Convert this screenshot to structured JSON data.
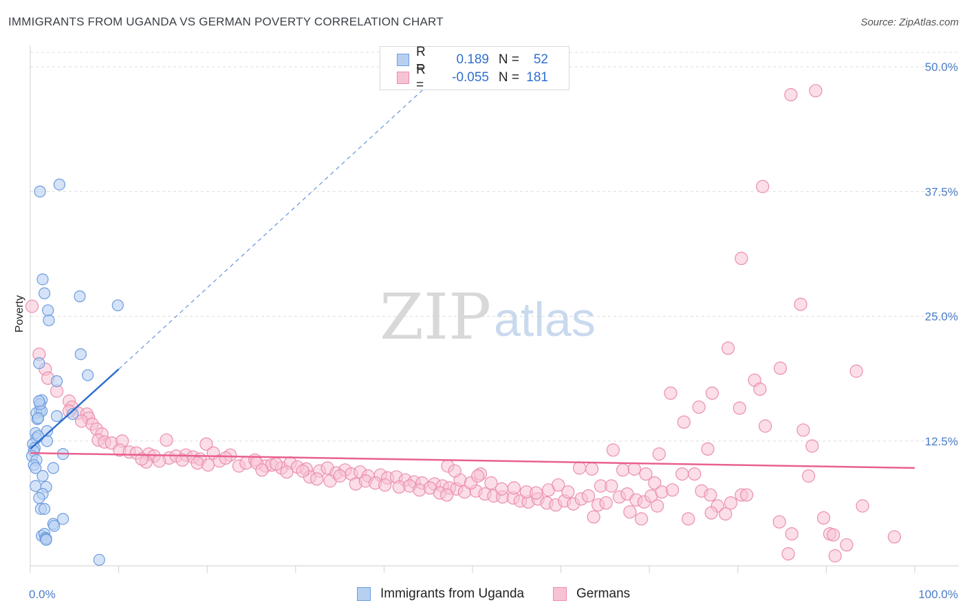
{
  "header": {
    "title": "IMMIGRANTS FROM UGANDA VS GERMAN POVERTY CORRELATION CHART",
    "source": "Source: ZipAtlas.com"
  },
  "watermark": {
    "zip": "ZIP",
    "atlas": "atlas"
  },
  "legend": {
    "rows": [
      {
        "r_label": "R =",
        "r_value": "0.189",
        "n_label": "N =",
        "n_value": "52"
      },
      {
        "r_label": "R =",
        "r_value": "-0.055",
        "n_label": "N =",
        "n_value": "181"
      }
    ]
  },
  "colors": {
    "uganda_fill": "#b7d0f2",
    "uganda_stroke": "#6d9be0",
    "uganda_line": "#2f6fcf",
    "germans_fill": "#f7c3d3",
    "germans_stroke": "#eb8dae",
    "germans_line": "#e8608e",
    "grid": "#dcdcdc",
    "tick_text": "#4a7cc7"
  },
  "chart_data": {
    "type": "scatter",
    "title": "IMMIGRANTS FROM UGANDA VS GERMAN POVERTY CORRELATION CHART",
    "xlabel": "",
    "ylabel": "Poverty",
    "xlim": [
      0,
      100
    ],
    "ylim": [
      0,
      52
    ],
    "x_tick_labels": [
      "0.0%",
      "100.0%"
    ],
    "y_ticks": [
      12.5,
      25.0,
      37.5,
      50.0
    ],
    "y_tick_labels": [
      "12.5%",
      "25.0%",
      "37.5%",
      "50.0%"
    ],
    "grid": true,
    "legend_position": "bottom",
    "series": [
      {
        "name": "Immigrants from Uganda",
        "r": 0.189,
        "n": 52,
        "trend": {
          "x": [
            0,
            10
          ],
          "y": [
            11.7,
            19.7
          ],
          "extended_to": [
            45,
            48.2
          ]
        },
        "points": [
          [
            1.1,
            37.5
          ],
          [
            3.3,
            38.2
          ],
          [
            1.4,
            28.7
          ],
          [
            1.6,
            27.3
          ],
          [
            5.6,
            27.0
          ],
          [
            2.1,
            24.6
          ],
          [
            9.9,
            26.1
          ],
          [
            1.0,
            20.3
          ],
          [
            5.7,
            21.2
          ],
          [
            6.5,
            19.1
          ],
          [
            3.0,
            18.5
          ],
          [
            1.3,
            16.6
          ],
          [
            1.1,
            15.5
          ],
          [
            0.7,
            15.3
          ],
          [
            1.3,
            15.5
          ],
          [
            0.8,
            14.7
          ],
          [
            3.0,
            15.0
          ],
          [
            0.9,
            14.8
          ],
          [
            1.1,
            16.2
          ],
          [
            1.0,
            16.5
          ],
          [
            1.9,
            13.5
          ],
          [
            0.6,
            13.3
          ],
          [
            0.7,
            12.8
          ],
          [
            1.9,
            12.5
          ],
          [
            0.3,
            12.2
          ],
          [
            0.5,
            11.8
          ],
          [
            0.4,
            11.5
          ],
          [
            0.2,
            11.0
          ],
          [
            3.7,
            11.2
          ],
          [
            0.7,
            10.6
          ],
          [
            0.4,
            10.1
          ],
          [
            0.6,
            9.8
          ],
          [
            2.6,
            9.8
          ],
          [
            1.4,
            9.0
          ],
          [
            0.6,
            8.0
          ],
          [
            1.8,
            7.9
          ],
          [
            1.4,
            7.2
          ],
          [
            1.0,
            6.8
          ],
          [
            1.2,
            5.7
          ],
          [
            1.6,
            5.7
          ],
          [
            3.7,
            4.7
          ],
          [
            2.6,
            4.2
          ],
          [
            2.7,
            4.0
          ],
          [
            1.3,
            3.0
          ],
          [
            1.6,
            3.2
          ],
          [
            1.7,
            2.8
          ],
          [
            1.8,
            2.7
          ],
          [
            1.8,
            2.6
          ],
          [
            7.8,
            0.6
          ],
          [
            2.0,
            25.6
          ],
          [
            4.8,
            15.2
          ],
          [
            0.9,
            13.0
          ]
        ]
      },
      {
        "name": "Germans",
        "r": -0.055,
        "n": 181,
        "trend": {
          "x": [
            0,
            100
          ],
          "y": [
            11.3,
            9.8
          ]
        },
        "points": [
          [
            86.0,
            47.2
          ],
          [
            88.8,
            47.6
          ],
          [
            82.8,
            38.0
          ],
          [
            80.4,
            30.8
          ],
          [
            87.1,
            26.2
          ],
          [
            0.2,
            26.0
          ],
          [
            78.9,
            21.8
          ],
          [
            1.0,
            21.2
          ],
          [
            84.8,
            19.8
          ],
          [
            93.4,
            19.5
          ],
          [
            1.7,
            19.7
          ],
          [
            2.0,
            18.8
          ],
          [
            81.9,
            18.6
          ],
          [
            82.5,
            17.7
          ],
          [
            72.4,
            17.3
          ],
          [
            77.1,
            17.3
          ],
          [
            3.0,
            17.5
          ],
          [
            4.4,
            16.5
          ],
          [
            75.6,
            15.9
          ],
          [
            80.2,
            15.8
          ],
          [
            4.7,
            15.9
          ],
          [
            5.4,
            15.3
          ],
          [
            6.4,
            15.2
          ],
          [
            6.6,
            14.8
          ],
          [
            4.4,
            15.5
          ],
          [
            5.8,
            14.5
          ],
          [
            7.0,
            14.2
          ],
          [
            7.5,
            13.7
          ],
          [
            8.1,
            13.2
          ],
          [
            73.9,
            14.4
          ],
          [
            83.1,
            14.0
          ],
          [
            87.4,
            13.6
          ],
          [
            7.7,
            12.6
          ],
          [
            8.4,
            12.4
          ],
          [
            9.2,
            12.3
          ],
          [
            10.4,
            12.5
          ],
          [
            15.4,
            12.6
          ],
          [
            19.9,
            12.2
          ],
          [
            88.4,
            12.0
          ],
          [
            76.6,
            11.7
          ],
          [
            65.9,
            11.6
          ],
          [
            71.1,
            11.2
          ],
          [
            10.1,
            11.6
          ],
          [
            11.2,
            11.4
          ],
          [
            12.0,
            11.3
          ],
          [
            13.4,
            11.2
          ],
          [
            14.0,
            11.0
          ],
          [
            15.7,
            10.8
          ],
          [
            16.5,
            11.0
          ],
          [
            17.6,
            11.1
          ],
          [
            18.4,
            10.9
          ],
          [
            19.2,
            10.7
          ],
          [
            20.7,
            11.3
          ],
          [
            22.6,
            11.1
          ],
          [
            13.1,
            10.4
          ],
          [
            14.6,
            10.5
          ],
          [
            12.6,
            10.7
          ],
          [
            17.2,
            10.6
          ],
          [
            18.9,
            10.3
          ],
          [
            20.1,
            10.1
          ],
          [
            21.4,
            10.5
          ],
          [
            22.1,
            10.8
          ],
          [
            23.6,
            10.0
          ],
          [
            24.4,
            10.3
          ],
          [
            25.4,
            10.6
          ],
          [
            26.6,
            10.0
          ],
          [
            27.3,
            10.1
          ],
          [
            28.4,
            9.8
          ],
          [
            29.4,
            10.3
          ],
          [
            30.2,
            9.9
          ],
          [
            31.2,
            9.7
          ],
          [
            32.7,
            9.5
          ],
          [
            33.6,
            9.8
          ],
          [
            34.6,
            9.3
          ],
          [
            35.6,
            9.6
          ],
          [
            36.3,
            9.2
          ],
          [
            37.3,
            9.4
          ],
          [
            38.2,
            9.0
          ],
          [
            39.6,
            9.1
          ],
          [
            40.4,
            8.8
          ],
          [
            41.4,
            8.9
          ],
          [
            42.4,
            8.6
          ],
          [
            43.4,
            8.4
          ],
          [
            44.3,
            8.3
          ],
          [
            45.7,
            8.2
          ],
          [
            46.6,
            8.0
          ],
          [
            47.4,
            7.8
          ],
          [
            48.2,
            7.7
          ],
          [
            49.1,
            7.4
          ],
          [
            50.4,
            7.5
          ],
          [
            51.4,
            7.2
          ],
          [
            52.4,
            7.0
          ],
          [
            53.4,
            6.9
          ],
          [
            54.6,
            6.8
          ],
          [
            55.4,
            6.5
          ],
          [
            56.3,
            6.4
          ],
          [
            57.4,
            6.7
          ],
          [
            58.4,
            6.3
          ],
          [
            59.4,
            6.1
          ],
          [
            60.4,
            6.5
          ],
          [
            61.4,
            6.2
          ],
          [
            62.3,
            6.7
          ],
          [
            63.1,
            7.0
          ],
          [
            64.2,
            6.1
          ],
          [
            65.1,
            6.3
          ],
          [
            66.6,
            6.9
          ],
          [
            67.5,
            7.2
          ],
          [
            68.5,
            6.6
          ],
          [
            69.4,
            6.4
          ],
          [
            70.2,
            7.0
          ],
          [
            25.6,
            10.3
          ],
          [
            26.2,
            9.6
          ],
          [
            27.8,
            10.2
          ],
          [
            29.0,
            9.4
          ],
          [
            31.6,
            8.9
          ],
          [
            32.4,
            8.7
          ],
          [
            33.9,
            8.5
          ],
          [
            35.0,
            9.0
          ],
          [
            36.8,
            8.2
          ],
          [
            37.9,
            8.5
          ],
          [
            39.0,
            8.3
          ],
          [
            40.1,
            8.1
          ],
          [
            41.7,
            7.9
          ],
          [
            42.9,
            8.0
          ],
          [
            44.0,
            7.6
          ],
          [
            45.2,
            7.8
          ],
          [
            46.3,
            7.3
          ],
          [
            47.1,
            7.1
          ],
          [
            48.6,
            8.6
          ],
          [
            49.8,
            8.3
          ],
          [
            50.9,
            9.2
          ],
          [
            52.1,
            8.3
          ],
          [
            53.3,
            7.7
          ],
          [
            54.7,
            7.8
          ],
          [
            56.1,
            7.4
          ],
          [
            57.2,
            7.3
          ],
          [
            58.6,
            7.6
          ],
          [
            59.7,
            8.1
          ],
          [
            60.8,
            7.4
          ],
          [
            62.1,
            9.8
          ],
          [
            63.5,
            9.7
          ],
          [
            64.5,
            8.0
          ],
          [
            65.7,
            8.0
          ],
          [
            67.0,
            9.6
          ],
          [
            68.3,
            9.7
          ],
          [
            69.6,
            9.2
          ],
          [
            70.6,
            8.3
          ],
          [
            71.4,
            7.4
          ],
          [
            72.6,
            7.6
          ],
          [
            73.7,
            9.2
          ],
          [
            75.1,
            9.2
          ],
          [
            75.9,
            7.5
          ],
          [
            76.9,
            7.1
          ],
          [
            77.7,
            6.0
          ],
          [
            78.6,
            5.2
          ],
          [
            79.2,
            6.3
          ],
          [
            80.4,
            7.1
          ],
          [
            81.0,
            7.1
          ],
          [
            84.7,
            4.4
          ],
          [
            86.1,
            3.2
          ],
          [
            88.0,
            9.0
          ],
          [
            89.7,
            4.8
          ],
          [
            90.4,
            3.2
          ],
          [
            91.0,
            1.0
          ],
          [
            92.3,
            2.1
          ],
          [
            94.1,
            6.0
          ],
          [
            97.7,
            2.9
          ],
          [
            85.7,
            1.2
          ],
          [
            47.2,
            10.0
          ],
          [
            48.0,
            9.5
          ],
          [
            50.6,
            9.0
          ],
          [
            63.7,
            4.9
          ],
          [
            67.8,
            5.4
          ],
          [
            69.1,
            4.7
          ],
          [
            70.9,
            6.0
          ],
          [
            74.4,
            4.7
          ],
          [
            77.0,
            5.3
          ],
          [
            90.8,
            3.1
          ],
          [
            30.8,
            9.5
          ]
        ]
      }
    ]
  },
  "bottom_legend": [
    {
      "label": "Immigrants from Uganda"
    },
    {
      "label": "Germans"
    }
  ]
}
